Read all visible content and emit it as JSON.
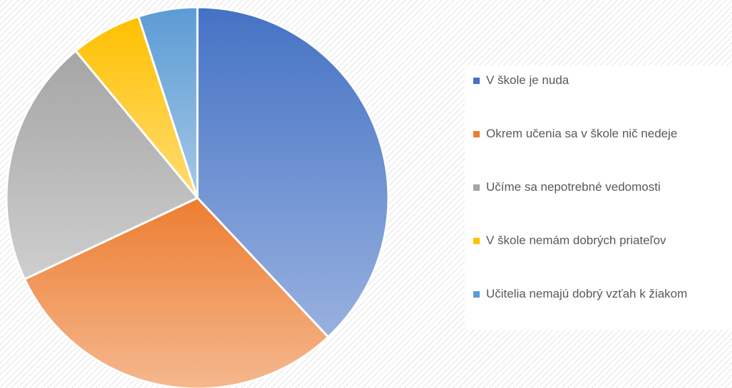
{
  "chart_data": {
    "type": "pie",
    "categories": [
      "V škole je nuda",
      "Okrem učenia sa v škole nič nedeje",
      "Učíme sa nepotrebné vedomosti",
      "V škole nemám dobrých priateľov",
      "Učitelia nemajú dobrý vzťah k žiakom"
    ],
    "values": [
      38,
      30,
      21,
      6,
      5
    ],
    "colors": [
      "#4472c4",
      "#ed7d31",
      "#a5a5a5",
      "#ffc000",
      "#5b9bd5"
    ],
    "legend": "right"
  }
}
